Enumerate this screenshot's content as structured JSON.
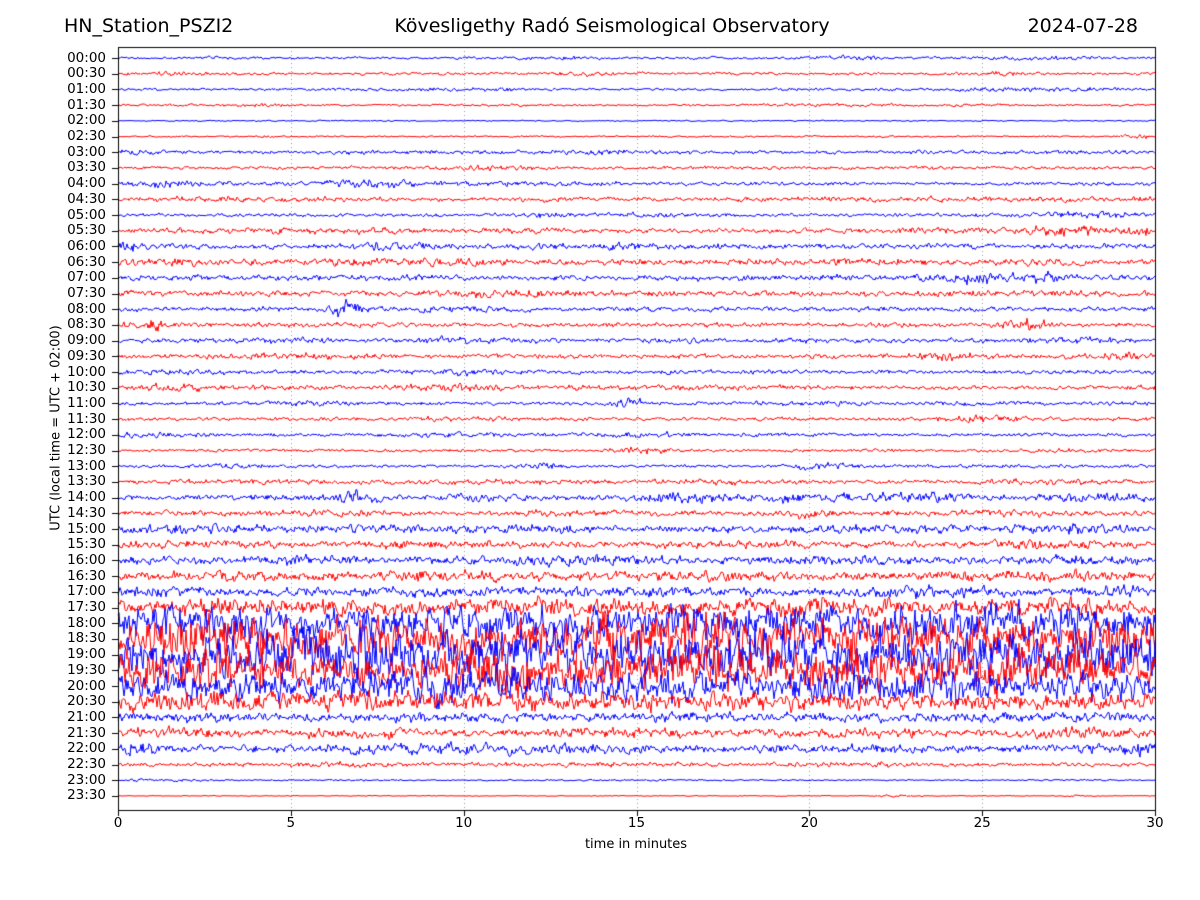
{
  "header": {
    "station": "HN_Station_PSZI2",
    "observatory": "Kövesligethy Radó Seismological Observatory",
    "date": "2024-07-28"
  },
  "chart_data": {
    "type": "line",
    "subtype": "helicorder-seismogram",
    "title": "HN_Station_PSZI2 — Kövesligethy Radó Seismological Observatory — 2024-07-28",
    "xlabel": "time in minutes",
    "ylabel": "UTC (local time = UTC + 02:00)",
    "x_range": [
      0,
      30
    ],
    "x_ticks": [
      0,
      5,
      10,
      15,
      20,
      25,
      30
    ],
    "grid_minutes": [
      5,
      10,
      15,
      20,
      25
    ],
    "minutes_per_line": 30,
    "grid_on": true,
    "colors": {
      "blue_trace": "#0000ff",
      "red_trace": "#ff0000",
      "grid": "#999999",
      "axis": "#000000",
      "text": "#000000",
      "background": "#ffffff"
    },
    "rows": [
      {
        "label": "00:00",
        "color": "blue",
        "amp": 1.8,
        "bursts": [
          [
            12.8,
            1,
            1.2
          ],
          [
            21,
            1,
            1.5
          ],
          [
            27,
            1.5,
            1.2
          ]
        ]
      },
      {
        "label": "00:30",
        "color": "red",
        "amp": 1.9,
        "bursts": [
          [
            1.5,
            1.5,
            1
          ],
          [
            13.5,
            1,
            1.5
          ],
          [
            25.5,
            1,
            1.2
          ]
        ]
      },
      {
        "label": "01:00",
        "color": "blue",
        "amp": 1.8,
        "bursts": [
          [
            10,
            2,
            1
          ],
          [
            26.5,
            2,
            1.5
          ]
        ]
      },
      {
        "label": "01:30",
        "color": "red",
        "amp": 1.6,
        "bursts": [
          [
            4,
            1.5,
            0.8
          ],
          [
            20,
            2,
            0.6
          ]
        ]
      },
      {
        "label": "02:00",
        "color": "blue",
        "amp": 0.9,
        "bursts": []
      },
      {
        "label": "02:30",
        "color": "red",
        "amp": 1.1,
        "bursts": [
          [
            4.5,
            0.3,
            1.2
          ],
          [
            29.5,
            0.6,
            2.2
          ]
        ]
      },
      {
        "label": "03:00",
        "color": "blue",
        "amp": 2.6,
        "bursts": [
          [
            0.5,
            1,
            1.2
          ],
          [
            14,
            2,
            0.8
          ]
        ]
      },
      {
        "label": "03:30",
        "color": "red",
        "amp": 2.1,
        "bursts": [
          [
            10.8,
            1.2,
            2.5
          ],
          [
            18,
            2,
            0.8
          ]
        ]
      },
      {
        "label": "04:00",
        "color": "blue",
        "amp": 2.6,
        "bursts": [
          [
            1.2,
            1,
            2.5
          ],
          [
            7.3,
            1.2,
            3.5
          ],
          [
            12,
            2,
            1
          ]
        ]
      },
      {
        "label": "04:30",
        "color": "red",
        "amp": 2.9,
        "bursts": [
          [
            3.5,
            2,
            1.5
          ],
          [
            25,
            2,
            1
          ]
        ]
      },
      {
        "label": "05:00",
        "color": "blue",
        "amp": 2.4,
        "bursts": [
          [
            12.5,
            1,
            2
          ],
          [
            15.3,
            1,
            1.5
          ],
          [
            28,
            1.5,
            2.5
          ]
        ]
      },
      {
        "label": "05:30",
        "color": "red",
        "amp": 3.3,
        "bursts": [
          [
            7,
            1.5,
            1.5
          ],
          [
            27.6,
            1.5,
            3.5
          ],
          [
            29.6,
            0.4,
            2.5
          ]
        ]
      },
      {
        "label": "06:00",
        "color": "blue",
        "amp": 3.8,
        "bursts": [
          [
            0.3,
            0.4,
            7
          ],
          [
            8,
            1.5,
            1.5
          ],
          [
            14,
            2,
            1.5
          ]
        ]
      },
      {
        "label": "06:30",
        "color": "red",
        "amp": 4.2,
        "bursts": [
          [
            1,
            2,
            1.5
          ],
          [
            9,
            1.5,
            1.5
          ],
          [
            22,
            2,
            1
          ]
        ]
      },
      {
        "label": "07:00",
        "color": "blue",
        "amp": 3.8,
        "bursts": [
          [
            24.8,
            0.7,
            5.5
          ],
          [
            26.6,
            0.9,
            3.5
          ]
        ]
      },
      {
        "label": "07:30",
        "color": "red",
        "amp": 3.6,
        "bursts": [
          [
            0.5,
            1,
            1.5
          ],
          [
            12,
            2,
            1.2
          ],
          [
            26,
            2,
            1.2
          ]
        ]
      },
      {
        "label": "08:00",
        "color": "blue",
        "amp": 3.3,
        "bursts": [
          [
            6.5,
            0.5,
            8
          ],
          [
            9.2,
            1.5,
            1.8
          ]
        ]
      },
      {
        "label": "08:30",
        "color": "red",
        "amp": 3.3,
        "bursts": [
          [
            0.8,
            0.5,
            5.5
          ],
          [
            26.3,
            0.7,
            5
          ]
        ]
      },
      {
        "label": "09:00",
        "color": "blue",
        "amp": 3.3,
        "bursts": [
          [
            5,
            2,
            1.2
          ],
          [
            9.5,
            1,
            1.8
          ],
          [
            28,
            1.5,
            1.5
          ]
        ]
      },
      {
        "label": "09:30",
        "color": "red",
        "amp": 3.3,
        "bursts": [
          [
            5.5,
            1.5,
            1.5
          ],
          [
            24,
            0.9,
            3.5
          ],
          [
            29,
            0.7,
            2.5
          ]
        ]
      },
      {
        "label": "10:00",
        "color": "blue",
        "amp": 2.9,
        "bursts": [
          [
            2,
            1.5,
            1.5
          ],
          [
            10,
            1,
            1.5
          ]
        ]
      },
      {
        "label": "10:30",
        "color": "red",
        "amp": 3.0,
        "bursts": [
          [
            1.8,
            1,
            2.5
          ],
          [
            9.7,
            1.2,
            2.5
          ],
          [
            17,
            2,
            1
          ]
        ]
      },
      {
        "label": "11:00",
        "color": "blue",
        "amp": 2.5,
        "bursts": [
          [
            5.5,
            1.5,
            1.2
          ],
          [
            14.8,
            0.4,
            5
          ],
          [
            20,
            2,
            1.2
          ]
        ]
      },
      {
        "label": "11:30",
        "color": "red",
        "amp": 2.5,
        "bursts": [
          [
            10,
            1.5,
            1.2
          ],
          [
            24.8,
            1.2,
            3
          ]
        ]
      },
      {
        "label": "12:00",
        "color": "blue",
        "amp": 2.5,
        "bursts": [
          [
            0.8,
            1,
            1.5
          ],
          [
            10,
            2,
            1.2
          ],
          [
            15,
            1.5,
            1.2
          ]
        ]
      },
      {
        "label": "12:30",
        "color": "red",
        "amp": 2.1,
        "bursts": [
          [
            15.2,
            0.8,
            2.8
          ],
          [
            27.5,
            1.5,
            1.2
          ]
        ]
      },
      {
        "label": "13:00",
        "color": "blue",
        "amp": 2.1,
        "bursts": [
          [
            3.5,
            1.5,
            1.2
          ],
          [
            12.4,
            0.4,
            4.5
          ],
          [
            20.3,
            0.8,
            3
          ]
        ]
      },
      {
        "label": "13:30",
        "color": "red",
        "amp": 3.0,
        "bursts": [
          [
            4,
            2,
            1.2
          ],
          [
            11,
            2,
            1.2
          ],
          [
            17.5,
            2,
            1.2
          ],
          [
            27,
            2,
            1.2
          ]
        ]
      },
      {
        "label": "14:00",
        "color": "blue",
        "amp": 3.8,
        "bursts": [
          [
            6.9,
            0.7,
            5
          ],
          [
            10.5,
            1,
            2.5
          ],
          [
            16.2,
            1,
            3.5
          ],
          [
            19.5,
            1.5,
            2.5
          ],
          [
            23,
            1.5,
            3.5
          ],
          [
            28.5,
            1.5,
            3.5
          ]
        ]
      },
      {
        "label": "14:30",
        "color": "red",
        "amp": 3.4,
        "bursts": [
          [
            6,
            1.5,
            1.8
          ],
          [
            13,
            1.5,
            1.8
          ],
          [
            19.9,
            0.6,
            3.5
          ],
          [
            26,
            2,
            1.8
          ]
        ]
      },
      {
        "label": "15:00",
        "color": "blue",
        "amp": 4.8,
        "bursts": [
          [
            2,
            2,
            1.8
          ],
          [
            7,
            2,
            1.8
          ],
          [
            12,
            2,
            1.8
          ],
          [
            22,
            3,
            1.8
          ],
          [
            28,
            1.5,
            2.5
          ]
        ]
      },
      {
        "label": "15:30",
        "color": "red",
        "amp": 4.4,
        "bursts": [
          [
            1,
            2,
            1.8
          ],
          [
            9,
            2,
            1.8
          ],
          [
            18,
            2,
            1.4
          ],
          [
            27,
            2,
            1.8
          ]
        ]
      },
      {
        "label": "16:00",
        "color": "blue",
        "amp": 5.2,
        "bursts": [
          [
            5,
            2,
            1.8
          ],
          [
            13,
            2,
            1.8
          ],
          [
            21,
            2,
            2.2
          ],
          [
            28,
            1.5,
            2.8
          ]
        ]
      },
      {
        "label": "16:30",
        "color": "red",
        "amp": 5.8,
        "bursts": [
          [
            3,
            2,
            1.8
          ],
          [
            10,
            2,
            1.8
          ],
          [
            17,
            2,
            1.8
          ],
          [
            25,
            2,
            1.8
          ]
        ]
      },
      {
        "label": "17:00",
        "color": "blue",
        "amp": 5.8,
        "bursts": [
          [
            1,
            1.5,
            2.8
          ],
          [
            8,
            2,
            1.8
          ],
          [
            15,
            2,
            1.8
          ],
          [
            23,
            2,
            2.8
          ],
          [
            29,
            1,
            2.8
          ]
        ]
      },
      {
        "label": "17:30",
        "color": "red",
        "amp": 9.5,
        "bursts": [
          [
            4,
            3,
            2.5
          ],
          [
            12,
            3,
            2.5
          ],
          [
            20,
            3,
            3.5
          ],
          [
            27,
            2,
            3.5
          ]
        ]
      },
      {
        "label": "18:00",
        "color": "blue",
        "amp": 20,
        "bursts": [
          [
            3,
            3,
            5
          ],
          [
            10,
            3,
            4
          ],
          [
            17,
            3,
            5
          ],
          [
            24,
            3,
            5
          ],
          [
            29,
            2,
            4
          ]
        ]
      },
      {
        "label": "18:30",
        "color": "red",
        "amp": 24,
        "bursts": [
          [
            2,
            3,
            5
          ],
          [
            8,
            3,
            5
          ],
          [
            15,
            3,
            7
          ],
          [
            22,
            3,
            5
          ],
          [
            28,
            2,
            5
          ]
        ]
      },
      {
        "label": "19:00",
        "color": "blue",
        "amp": 26,
        "bursts": [
          [
            5,
            3,
            7
          ],
          [
            12,
            3,
            5
          ],
          [
            19,
            3,
            7
          ],
          [
            26,
            3,
            5
          ]
        ]
      },
      {
        "label": "19:30",
        "color": "red",
        "amp": 23,
        "bursts": [
          [
            3,
            3,
            5
          ],
          [
            11,
            3,
            5
          ],
          [
            18,
            3,
            5
          ],
          [
            25,
            3,
            5
          ]
        ]
      },
      {
        "label": "20:00",
        "color": "blue",
        "amp": 17,
        "bursts": [
          [
            2,
            3,
            4
          ],
          [
            9,
            3,
            4
          ],
          [
            16,
            3,
            4
          ],
          [
            23,
            3,
            4
          ],
          [
            29,
            1.5,
            4
          ]
        ]
      },
      {
        "label": "20:30",
        "color": "red",
        "amp": 11,
        "bursts": [
          [
            1,
            2,
            3.5
          ],
          [
            7,
            3,
            3.5
          ],
          [
            14,
            3,
            2.5
          ],
          [
            20,
            2,
            2.5
          ]
        ]
      },
      {
        "label": "21:00",
        "color": "blue",
        "amp": 5.5,
        "bursts": [
          [
            2,
            2,
            1.8
          ],
          [
            9,
            2,
            1.8
          ],
          [
            16.5,
            2,
            1.8
          ],
          [
            26,
            2,
            1.4
          ]
        ]
      },
      {
        "label": "21:30",
        "color": "red",
        "amp": 5.0,
        "bursts": [
          [
            1.5,
            1.5,
            2.5
          ],
          [
            7,
            1.5,
            1.8
          ],
          [
            14,
            2,
            1.8
          ],
          [
            21,
            2,
            1.8
          ],
          [
            28,
            1.5,
            2.5
          ]
        ]
      },
      {
        "label": "22:00",
        "color": "blue",
        "amp": 5.5,
        "bursts": [
          [
            0.6,
            0.4,
            6
          ],
          [
            7,
            1,
            2.5
          ],
          [
            10,
            2,
            1.8
          ],
          [
            29.5,
            0.4,
            5
          ]
        ]
      },
      {
        "label": "22:30",
        "color": "red",
        "amp": 2.8,
        "bursts": [
          [
            6,
            2,
            1.2
          ],
          [
            15,
            2,
            0.8
          ],
          [
            22,
            2,
            1.2
          ]
        ]
      },
      {
        "label": "23:00",
        "color": "blue",
        "amp": 1.0,
        "bursts": [
          [
            0.7,
            0.5,
            1.4
          ],
          [
            1.8,
            0.5,
            1
          ],
          [
            7,
            1,
            0.5
          ],
          [
            15.8,
            0.3,
            0.7
          ]
        ]
      },
      {
        "label": "23:30",
        "color": "red",
        "amp": 0.55,
        "bursts": [
          [
            22.6,
            0.5,
            1.5
          ],
          [
            27.8,
            0.5,
            0.7
          ]
        ]
      }
    ]
  }
}
